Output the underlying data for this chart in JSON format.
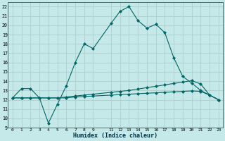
{
  "xlabel": "Humidex (Indice chaleur)",
  "bg_color": "#c5e8e8",
  "grid_color": "#b0d8d8",
  "line_color": "#006666",
  "ylim": [
    9,
    22.5
  ],
  "xlim": [
    -0.5,
    23.5
  ],
  "yticks": [
    9,
    10,
    11,
    12,
    13,
    14,
    15,
    16,
    17,
    18,
    19,
    20,
    21,
    22
  ],
  "xticks": [
    0,
    1,
    2,
    3,
    4,
    5,
    6,
    7,
    8,
    9,
    11,
    12,
    13,
    14,
    15,
    16,
    17,
    18,
    19,
    20,
    21,
    22,
    23
  ],
  "series1_x": [
    0,
    1,
    2,
    3,
    4,
    5,
    6,
    7,
    8,
    9,
    11,
    12,
    13,
    14,
    15,
    16,
    17,
    18,
    19,
    20,
    21,
    22,
    23
  ],
  "series1_y": [
    12.2,
    13.2,
    13.2,
    12.2,
    9.5,
    11.5,
    13.5,
    16.0,
    18.0,
    17.5,
    20.2,
    21.5,
    22.0,
    20.5,
    19.7,
    20.1,
    19.2,
    16.5,
    14.5,
    13.8,
    13.0,
    12.5,
    12.0
  ],
  "series2_x": [
    0,
    1,
    2,
    3,
    4,
    5,
    6,
    7,
    8,
    9,
    11,
    12,
    13,
    14,
    15,
    16,
    17,
    18,
    19,
    20,
    21,
    22,
    23
  ],
  "series2_y": [
    12.2,
    12.2,
    12.2,
    12.2,
    12.2,
    12.2,
    12.3,
    12.4,
    12.5,
    12.6,
    12.8,
    12.9,
    13.0,
    13.15,
    13.3,
    13.45,
    13.6,
    13.75,
    13.9,
    14.05,
    13.7,
    12.5,
    12.0
  ],
  "series3_x": [
    0,
    1,
    2,
    3,
    4,
    5,
    6,
    7,
    8,
    9,
    11,
    12,
    13,
    14,
    15,
    16,
    17,
    18,
    19,
    20,
    21,
    22,
    23
  ],
  "series3_y": [
    12.2,
    12.2,
    12.2,
    12.2,
    12.2,
    12.2,
    12.2,
    12.3,
    12.35,
    12.4,
    12.5,
    12.55,
    12.6,
    12.65,
    12.7,
    12.75,
    12.8,
    12.85,
    12.9,
    12.95,
    12.9,
    12.5,
    12.0
  ]
}
